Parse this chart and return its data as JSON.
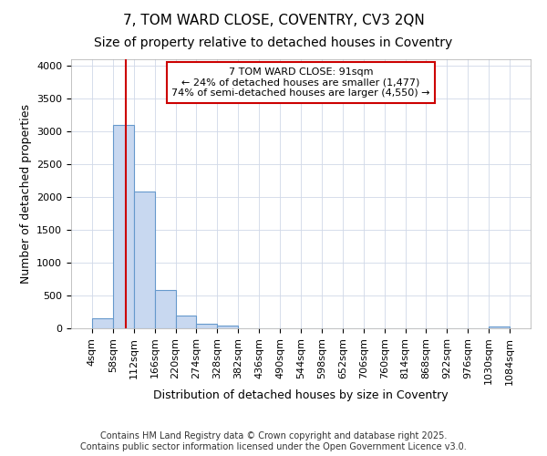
{
  "title1": "7, TOM WARD CLOSE, COVENTRY, CV3 2QN",
  "title2": "Size of property relative to detached houses in Coventry",
  "xlabel": "Distribution of detached houses by size in Coventry",
  "ylabel": "Number of detached properties",
  "bin_edges": [
    4,
    58,
    112,
    166,
    220,
    274,
    328,
    382,
    436,
    490,
    544,
    598,
    652,
    706,
    760,
    814,
    868,
    922,
    976,
    1030,
    1084
  ],
  "bar_heights": [
    150,
    3100,
    2090,
    580,
    200,
    75,
    40,
    0,
    0,
    0,
    0,
    0,
    0,
    0,
    0,
    0,
    0,
    0,
    0,
    30
  ],
  "bar_color": "#c8d8f0",
  "bar_edge_color": "#6699cc",
  "bar_edge_width": 0.8,
  "red_line_x": 91,
  "annotation_text": "7 TOM WARD CLOSE: 91sqm\n← 24% of detached houses are smaller (1,477)\n74% of semi-detached houses are larger (4,550) →",
  "annotation_box_color": "#ffffff",
  "annotation_box_edge_color": "#cc0000",
  "ylim": [
    0,
    4100
  ],
  "yticks": [
    0,
    500,
    1000,
    1500,
    2000,
    2500,
    3000,
    3500,
    4000
  ],
  "footer1": "Contains HM Land Registry data © Crown copyright and database right 2025.",
  "footer2": "Contains public sector information licensed under the Open Government Licence v3.0.",
  "bg_color": "#ffffff",
  "grid_color": "#d0d8e8",
  "title_fontsize": 11,
  "subtitle_fontsize": 10,
  "axis_label_fontsize": 9,
  "tick_fontsize": 8,
  "annotation_fontsize": 8,
  "footer_fontsize": 7
}
